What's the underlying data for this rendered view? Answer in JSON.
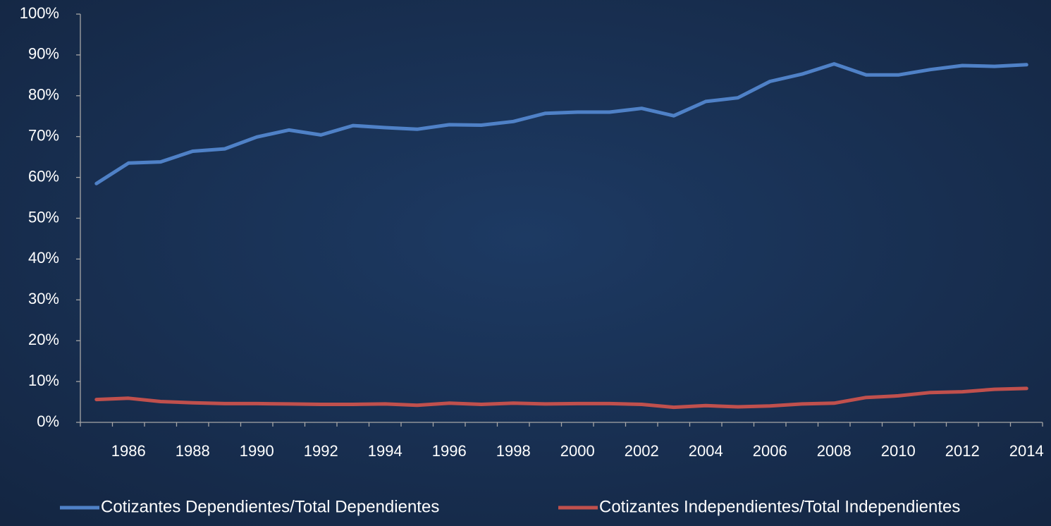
{
  "chart_data": {
    "type": "line",
    "categories": [
      null,
      "1986",
      null,
      "1988",
      null,
      "1990",
      null,
      "1992",
      null,
      "1994",
      null,
      "1996",
      null,
      "1998",
      null,
      "2000",
      null,
      "2002",
      null,
      "2004",
      null,
      "2006",
      null,
      "2008",
      null,
      "2010",
      null,
      "2012",
      null,
      "2014"
    ],
    "series": [
      {
        "name": "Cotizantes Dependientes/Total Dependientes",
        "color": "#4f81c7",
        "values": [
          58.5,
          63.5,
          63.8,
          66.4,
          67,
          69.9,
          71.6,
          70.4,
          72.7,
          72.2,
          71.8,
          72.9,
          72.8,
          73.7,
          75.7,
          76,
          76,
          76.9,
          75.1,
          78.6,
          79.5,
          83.5,
          85.3,
          87.8,
          85.1,
          85.1,
          86.4,
          87.4,
          87.2,
          87.6
        ]
      },
      {
        "name": "Cotizantes Independientes/Total Independientes",
        "color": "#c0504d",
        "values": [
          5.6,
          5.9,
          5.1,
          4.8,
          4.6,
          4.6,
          4.5,
          4.4,
          4.4,
          4.5,
          4.2,
          4.7,
          4.4,
          4.7,
          4.5,
          4.6,
          4.6,
          4.4,
          3.7,
          4.1,
          3.8,
          4.0,
          4.5,
          4.7,
          6.1,
          6.5,
          7.3,
          7.5,
          8.1,
          8.3
        ]
      }
    ],
    "ylim": [
      0,
      100
    ],
    "yticks": [
      {
        "value": 0,
        "label": "0%"
      },
      {
        "value": 10,
        "label": "10%"
      },
      {
        "value": 20,
        "label": "20%"
      },
      {
        "value": 30,
        "label": "30%"
      },
      {
        "value": 40,
        "label": "40%"
      },
      {
        "value": 50,
        "label": "50%"
      },
      {
        "value": 60,
        "label": "60%"
      },
      {
        "value": 70,
        "label": "70%"
      },
      {
        "value": 80,
        "label": "80%"
      },
      {
        "value": 90,
        "label": "90%"
      },
      {
        "value": 100,
        "label": "100%"
      }
    ],
    "legend": "bottom"
  }
}
